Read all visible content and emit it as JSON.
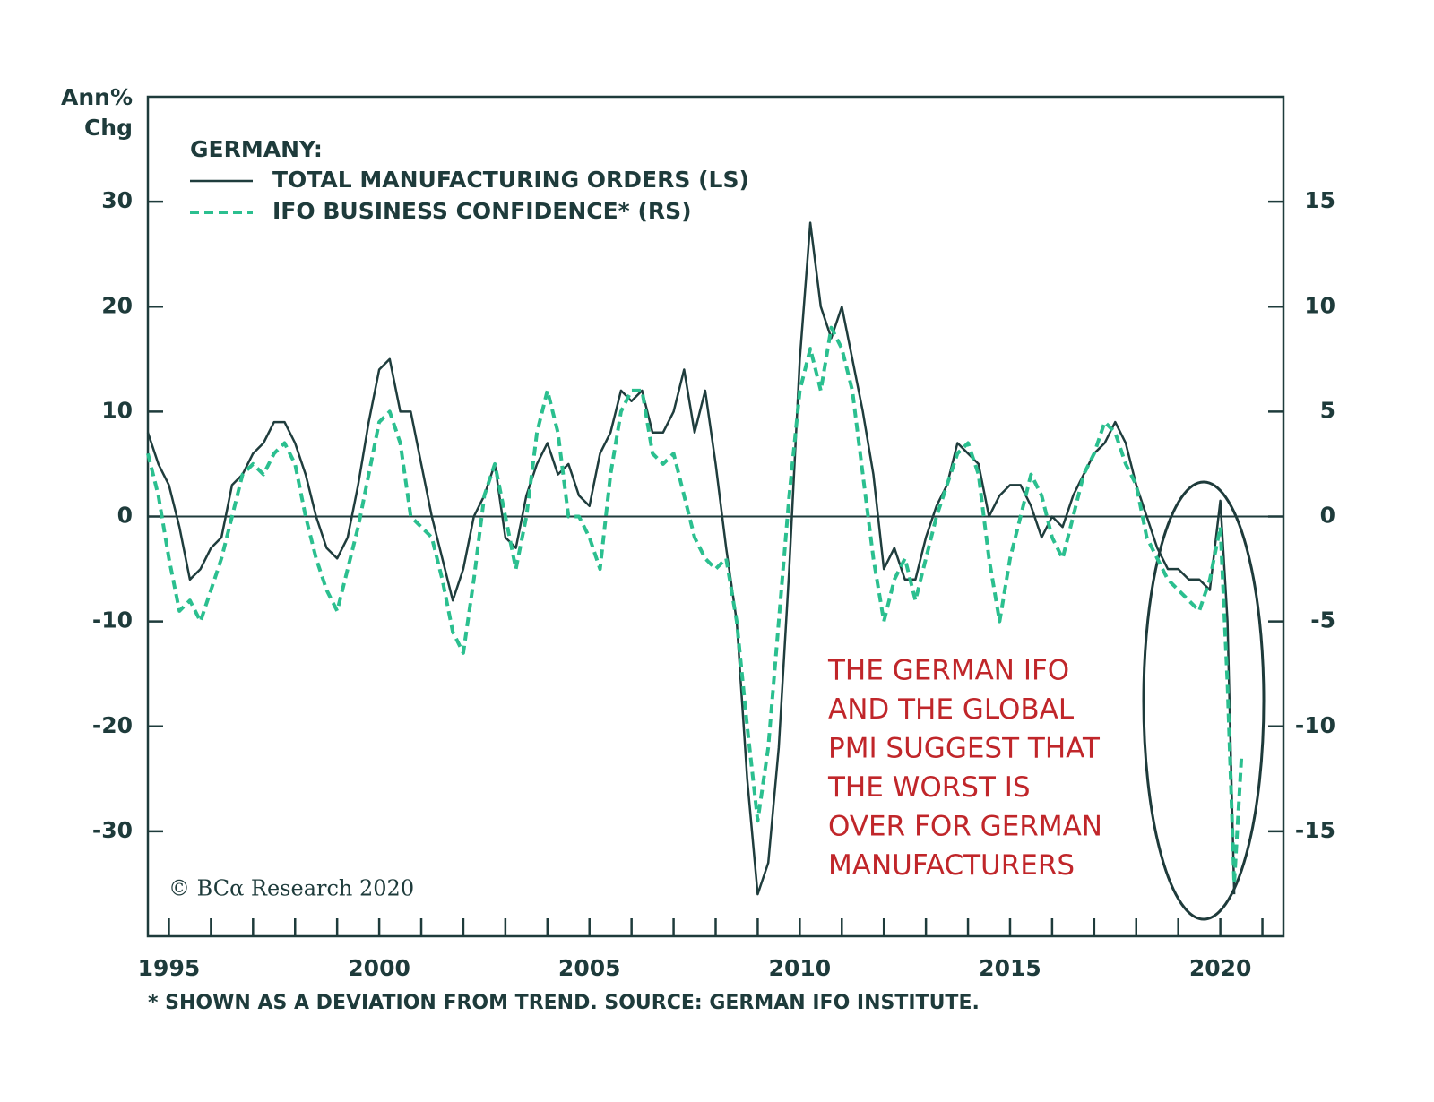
{
  "chart_data": {
    "type": "line",
    "ylabel_lines": [
      "Ann%",
      "Chg"
    ],
    "legend_title": "GERMANY:",
    "annotation_lines": [
      "THE GERMAN IFO",
      "AND THE GLOBAL",
      "PMI SUGGEST THAT",
      "THE WORST IS",
      "OVER FOR GERMAN",
      "MANUFACTURERS"
    ],
    "copyright": "© BCα Research 2020",
    "footnote": "* SHOWN AS A DEVIATION FROM TREND. SOURCE: GERMAN IFO INSTITUTE.",
    "xlim": [
      1994.5,
      2021.5
    ],
    "xticks": [
      1995,
      2000,
      2005,
      2010,
      2015,
      2020
    ],
    "xminor_ticks": [
      1995,
      1996,
      1997,
      1998,
      1999,
      2000,
      2001,
      2002,
      2003,
      2004,
      2005,
      2006,
      2007,
      2008,
      2009,
      2010,
      2011,
      2012,
      2013,
      2014,
      2015,
      2016,
      2017,
      2018,
      2019,
      2020,
      2021
    ],
    "ylim": [
      -40,
      40
    ],
    "yticks": [
      -30,
      -20,
      -10,
      0,
      10,
      20,
      30
    ],
    "y2lim": [
      -20,
      20
    ],
    "y2ticks": [
      -15,
      -10,
      -5,
      0,
      5,
      10,
      15
    ],
    "zero_line": true,
    "x": [
      1994.5,
      1994.75,
      1995,
      1995.25,
      1995.5,
      1995.75,
      1996,
      1996.25,
      1996.5,
      1996.75,
      1997,
      1997.25,
      1997.5,
      1997.75,
      1998,
      1998.25,
      1998.5,
      1998.75,
      1999,
      1999.25,
      1999.5,
      1999.75,
      2000,
      2000.25,
      2000.5,
      2000.75,
      2001,
      2001.25,
      2001.5,
      2001.75,
      2002,
      2002.25,
      2002.5,
      2002.75,
      2003,
      2003.25,
      2003.5,
      2003.75,
      2004,
      2004.25,
      2004.5,
      2004.75,
      2005,
      2005.25,
      2005.5,
      2005.75,
      2006,
      2006.25,
      2006.5,
      2006.75,
      2007,
      2007.25,
      2007.5,
      2007.75,
      2008,
      2008.25,
      2008.5,
      2008.75,
      2009,
      2009.25,
      2009.5,
      2009.75,
      2010,
      2010.25,
      2010.5,
      2010.75,
      2011,
      2011.25,
      2011.5,
      2011.75,
      2012,
      2012.25,
      2012.5,
      2012.75,
      2013,
      2013.25,
      2013.5,
      2013.75,
      2014,
      2014.25,
      2014.5,
      2014.75,
      2015,
      2015.25,
      2015.5,
      2015.75,
      2016,
      2016.25,
      2016.5,
      2016.75,
      2017,
      2017.25,
      2017.5,
      2017.75,
      2018,
      2018.25,
      2018.5,
      2018.75,
      2019,
      2019.25,
      2019.5,
      2019.75,
      2020,
      2020.17,
      2020.33,
      2020.5
    ],
    "series": [
      {
        "name": "TOTAL MANUFACTURING ORDERS (LS)",
        "color": "#1f3d3d",
        "axis": "y",
        "dash": false,
        "values": [
          8,
          5,
          3,
          -1,
          -6,
          -5,
          -3,
          -2,
          3,
          4,
          6,
          7,
          9,
          9,
          7,
          4,
          0,
          -3,
          -4,
          -2,
          3,
          9,
          14,
          15,
          10,
          10,
          5,
          0,
          -4,
          -8,
          -5,
          0,
          2,
          5,
          -2,
          -3,
          2,
          5,
          7,
          4,
          5,
          2,
          1,
          6,
          8,
          12,
          11,
          12,
          8,
          8,
          10,
          14,
          8,
          12,
          5,
          -3,
          -10,
          -25,
          -36,
          -33,
          -22,
          -5,
          15,
          28,
          20,
          17,
          20,
          15,
          10,
          4,
          -5,
          -3,
          -6,
          -6,
          -2,
          1,
          3,
          7,
          6,
          5,
          0,
          2,
          3,
          3,
          1,
          -2,
          0,
          -1,
          2,
          4,
          6,
          7,
          9,
          7,
          3,
          0,
          -3,
          -5,
          -5,
          -6,
          -6,
          -7,
          1.5,
          -10,
          -36,
          null
        ]
      },
      {
        "name": "IFO BUSINESS CONFIDENCE* (RS)",
        "color": "#2bbf8f",
        "axis": "y2",
        "dash": true,
        "values": [
          3,
          1,
          -2,
          -4.5,
          -4,
          -5,
          -3.5,
          -2,
          0,
          2,
          2.5,
          2,
          3,
          3.5,
          2.5,
          0,
          -2,
          -3.5,
          -4.5,
          -2.5,
          -0.5,
          2,
          4.5,
          5,
          3.5,
          0,
          -0.5,
          -1,
          -3,
          -5.5,
          -6.5,
          -3,
          1,
          2.5,
          0,
          -2.5,
          0,
          4,
          6,
          4,
          0,
          0,
          -1,
          -2.5,
          2,
          5,
          6,
          6,
          3,
          2.5,
          3,
          1,
          -1,
          -2,
          -2.5,
          -2,
          -5,
          -10,
          -14.5,
          -11,
          -5,
          1,
          6,
          8,
          6,
          9,
          8,
          6,
          2,
          -2,
          -5,
          -3,
          -2,
          -4,
          -2,
          0,
          1.5,
          3,
          3.5,
          2,
          -2,
          -5,
          -2,
          0,
          2,
          1,
          -1,
          -2,
          0,
          2,
          3,
          4.5,
          4,
          2.5,
          1.5,
          -1,
          -2,
          -3,
          -3.5,
          -4,
          -4.5,
          -3,
          -0.5,
          -8,
          -17.5,
          -11.5
        ]
      }
    ]
  }
}
